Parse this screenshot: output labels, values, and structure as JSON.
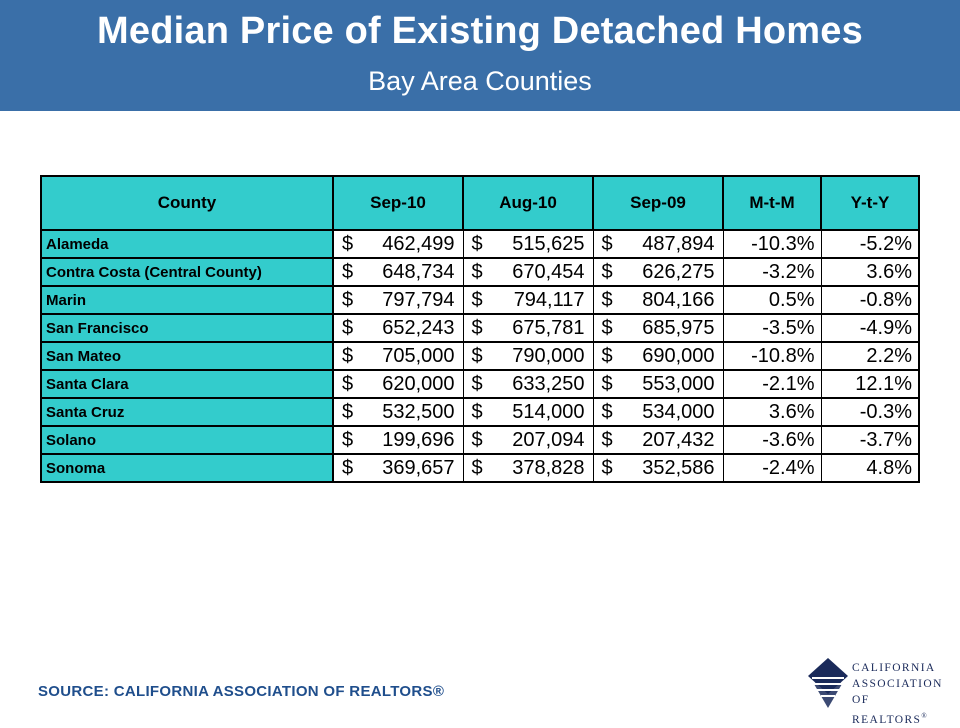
{
  "header": {
    "title": "Median Price of Existing Detached Homes",
    "subtitle": "Bay Area Counties"
  },
  "table": {
    "columns": [
      "County",
      "Sep-10",
      "Aug-10",
      "Sep-09",
      "M-t-M",
      "Y-t-Y"
    ],
    "rows": [
      {
        "county": "Alameda",
        "sep10": "462,499",
        "aug10": "515,625",
        "sep09": "487,894",
        "mtm": "-10.3%",
        "yty": "-5.2%"
      },
      {
        "county": "Contra Costa (Central County)",
        "sep10": "648,734",
        "aug10": "670,454",
        "sep09": "626,275",
        "mtm": "-3.2%",
        "yty": "3.6%"
      },
      {
        "county": "Marin",
        "sep10": "797,794",
        "aug10": "794,117",
        "sep09": "804,166",
        "mtm": "0.5%",
        "yty": "-0.8%"
      },
      {
        "county": "San Francisco",
        "sep10": "652,243",
        "aug10": "675,781",
        "sep09": "685,975",
        "mtm": "-3.5%",
        "yty": "-4.9%"
      },
      {
        "county": "San Mateo",
        "sep10": "705,000",
        "aug10": "790,000",
        "sep09": "690,000",
        "mtm": "-10.8%",
        "yty": "2.2%"
      },
      {
        "county": "Santa Clara",
        "sep10": "620,000",
        "aug10": "633,250",
        "sep09": "553,000",
        "mtm": "-2.1%",
        "yty": "12.1%"
      },
      {
        "county": "Santa Cruz",
        "sep10": "532,500",
        "aug10": "514,000",
        "sep09": "534,000",
        "mtm": "3.6%",
        "yty": "-0.3%"
      },
      {
        "county": "Solano",
        "sep10": "199,696",
        "aug10": "207,094",
        "sep09": "207,432",
        "mtm": "-3.6%",
        "yty": "-3.7%"
      },
      {
        "county": "Sonoma",
        "sep10": "369,657",
        "aug10": "378,828",
        "sep09": "352,586",
        "mtm": "-2.4%",
        "yty": "4.8%"
      }
    ]
  },
  "currency_symbol": "$",
  "footer": {
    "source": "SOURCE: CALIFORNIA ASSOCIATION OF REALTORS®"
  },
  "logo": {
    "line1": "CALIFORNIA",
    "line2": "ASSOCIATION",
    "line3": "OF REALTORS",
    "mark": "®",
    "icon": "car-logo-icon"
  },
  "colors": {
    "header_bg": "#3a6fa8",
    "cell_accent": "#33cccc",
    "source_text": "#1f4e8c"
  }
}
